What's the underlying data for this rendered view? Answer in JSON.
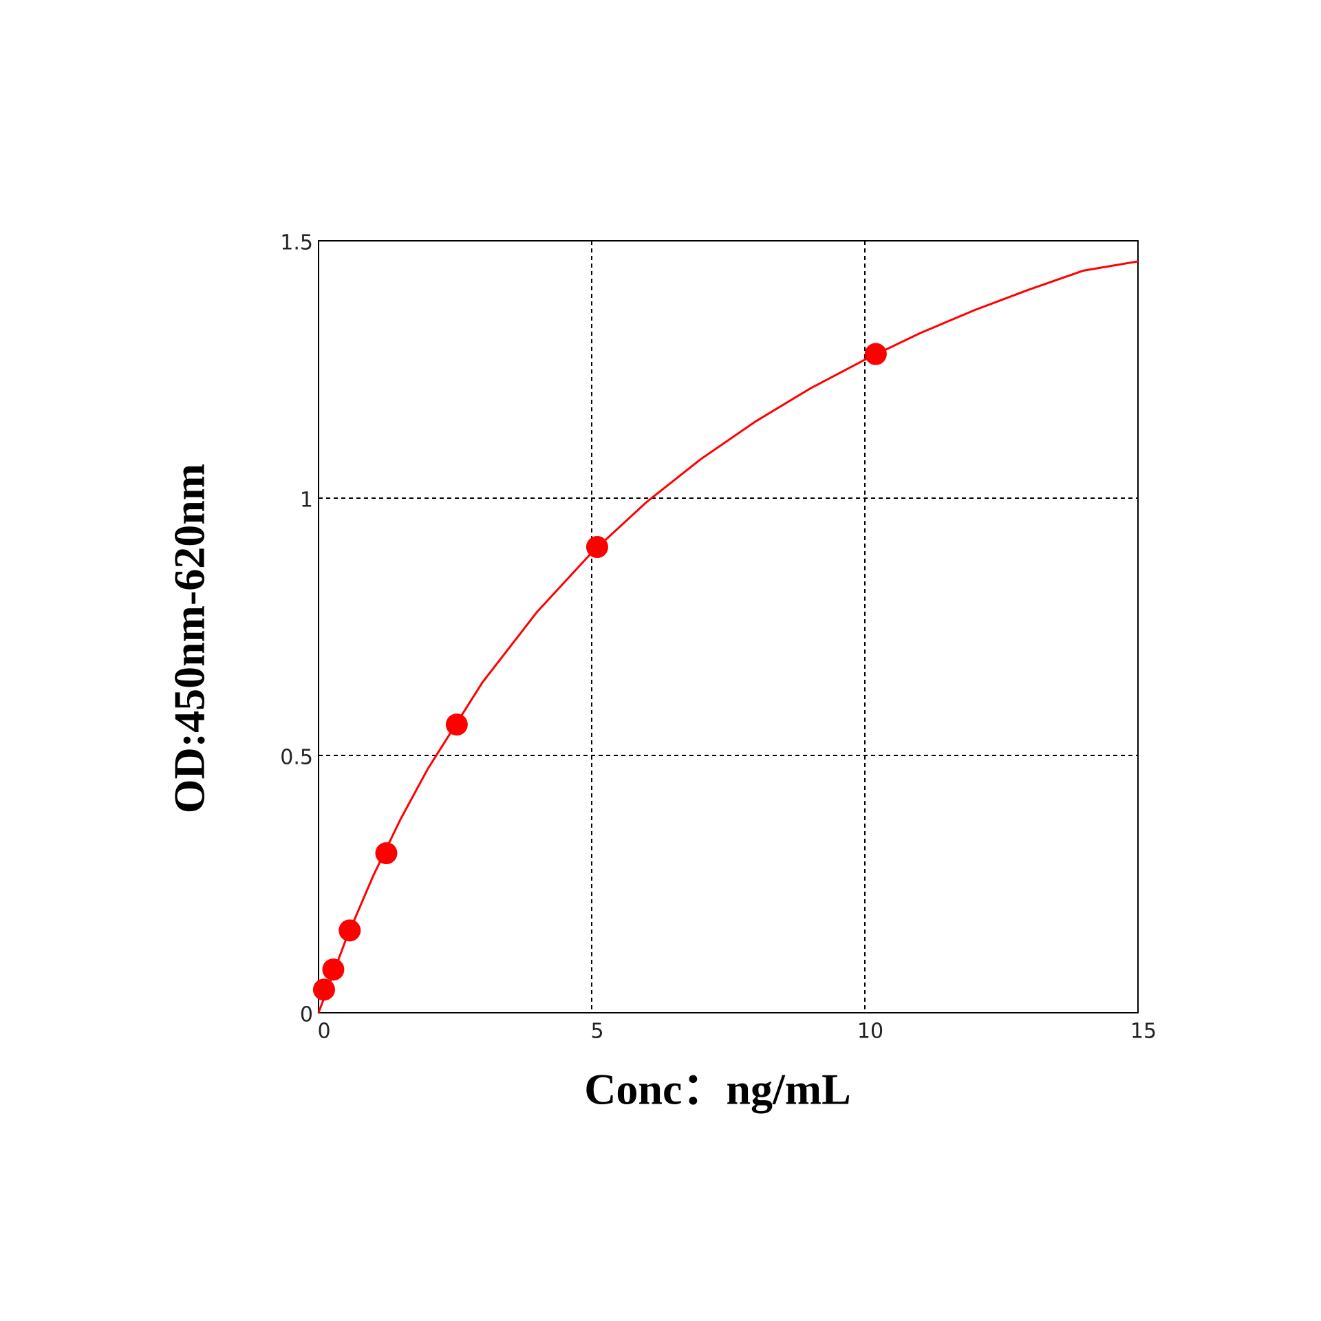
{
  "chart_data": {
    "type": "scatter",
    "x_label": "Conc：ng/mL",
    "y_label": "OD:450nm-620nm",
    "xlim": [
      0,
      15
    ],
    "xticks": [
      0,
      5,
      10,
      15
    ],
    "ylim": [
      0,
      1.5
    ],
    "yticks": [
      0,
      0.5,
      1,
      1.5
    ],
    "grid": true,
    "series": [
      {
        "type": "scatter",
        "color": "#ff0000",
        "x": [
          0.1,
          0.27,
          0.57,
          1.24,
          2.53,
          5.1,
          10.2
        ],
        "values": [
          0.045,
          0.084,
          0.16,
          0.31,
          0.56,
          0.905,
          1.28
        ]
      },
      {
        "type": "line",
        "color": "#ff0000",
        "x": [
          0,
          0.5,
          1,
          1.5,
          2,
          3,
          4,
          5,
          6,
          7,
          8,
          9,
          10,
          11,
          12,
          13,
          14,
          15
        ],
        "values": [
          0,
          0.142,
          0.266,
          0.376,
          0.474,
          0.642,
          0.779,
          0.894,
          0.992,
          1.076,
          1.149,
          1.213,
          1.269,
          1.32,
          1.365,
          1.405,
          1.442,
          1.46
        ]
      }
    ]
  }
}
